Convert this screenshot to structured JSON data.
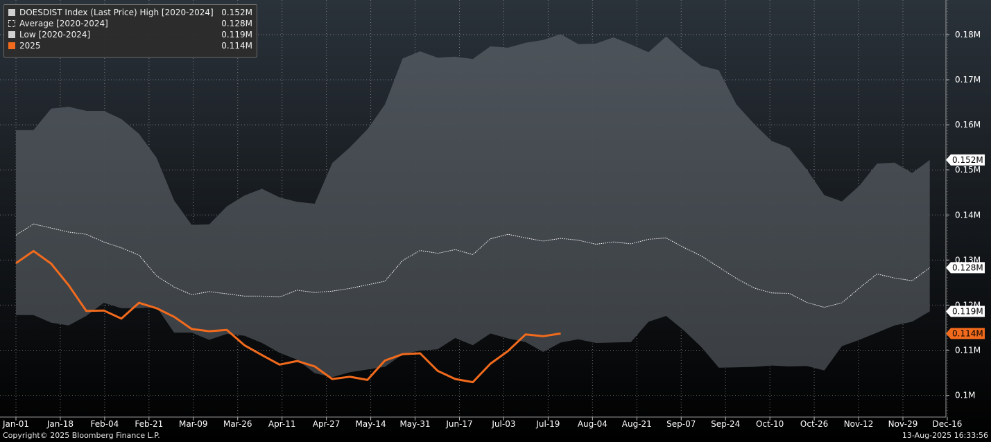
{
  "legend": {
    "items": [
      {
        "label": "DOESDIST Index (Last Price) High [2020-2024]",
        "value": "0.152M",
        "swatch": "solid",
        "color": "#d0d0d0"
      },
      {
        "label": "Average  [2020-2024]",
        "value": "0.128M",
        "swatch": "dotted",
        "color": "#ffffff"
      },
      {
        "label": "Low  [2020-2024]",
        "value": "0.119M",
        "swatch": "solid",
        "color": "#d0d0d0"
      },
      {
        "label": "2025",
        "value": "0.114M",
        "swatch": "solid",
        "color": "#f26b1d"
      }
    ]
  },
  "footer": {
    "copyright": "Copyright© 2025 Bloomberg Finance L.P.",
    "timestamp": "13-Aug-2025 16:33:56"
  },
  "colors": {
    "band_fill": "#4b4f54",
    "average_line": "#ffffff",
    "series_2025": "#f26b1d",
    "background_top": "#2a323a",
    "background_bottom": "#000000",
    "grid": "#c8c8c8"
  },
  "chart_data": {
    "type": "area",
    "x_ticks": [
      "Jan-01",
      "Jan-18",
      "Feb-04",
      "Feb-21",
      "Mar-09",
      "Mar-26",
      "Apr-11",
      "Apr-27",
      "May-14",
      "May-31",
      "Jun-17",
      "Jul-03",
      "Jul-19",
      "Aug-04",
      "Aug-21",
      "Sep-07",
      "Sep-24",
      "Oct-10",
      "Oct-26",
      "Nov-12",
      "Nov-29",
      "Dec-16"
    ],
    "y_ticks": [
      "0.1M",
      "0.11M",
      "0.12M",
      "0.13M",
      "0.14M",
      "0.15M",
      "0.16M",
      "0.17M",
      "0.18M"
    ],
    "y_tick_values": [
      0.1,
      0.11,
      0.12,
      0.13,
      0.14,
      0.15,
      0.16,
      0.17,
      0.18
    ],
    "ylim": [
      0.0949,
      0.1883
    ],
    "x_range_weeks": [
      0,
      52
    ],
    "grid": true,
    "legend_position": "top-left",
    "last_value_labels": [
      {
        "text": "0.152M",
        "value": 0.1522,
        "style": "white"
      },
      {
        "text": "0.128M",
        "value": 0.1283,
        "style": "white"
      },
      {
        "text": "0.119M",
        "value": 0.1186,
        "style": "white"
      },
      {
        "text": "0.114M",
        "value": 0.1137,
        "style": "orange"
      }
    ],
    "series": [
      {
        "name": "DOESDIST Index (Last Price) High [2020-2024]",
        "role": "band_upper",
        "values": [
          0.1588,
          0.1588,
          0.1636,
          0.164,
          0.1631,
          0.1631,
          0.1613,
          0.158,
          0.1527,
          0.1432,
          0.1378,
          0.1379,
          0.1419,
          0.1443,
          0.1458,
          0.1439,
          0.1429,
          0.1425,
          0.1515,
          0.155,
          0.159,
          0.1645,
          0.1747,
          0.1763,
          0.1749,
          0.1751,
          0.1746,
          0.1774,
          0.1771,
          0.1782,
          0.1788,
          0.1801,
          0.1779,
          0.178,
          0.1794,
          0.1778,
          0.1761,
          0.1796,
          0.1761,
          0.1731,
          0.1721,
          0.1645,
          0.1602,
          0.1564,
          0.1549,
          0.1501,
          0.1444,
          0.143,
          0.1465,
          0.1514,
          0.1516,
          0.1493,
          0.1522
        ]
      },
      {
        "name": "Average  [2020-2024]",
        "role": "line_dotted",
        "values": [
          0.1355,
          0.138,
          0.1371,
          0.1362,
          0.1357,
          0.134,
          0.1327,
          0.1311,
          0.1265,
          0.124,
          0.1223,
          0.123,
          0.1225,
          0.122,
          0.122,
          0.1218,
          0.1233,
          0.1228,
          0.1231,
          0.1237,
          0.1245,
          0.1253,
          0.1299,
          0.1321,
          0.1315,
          0.1323,
          0.1312,
          0.1347,
          0.1357,
          0.1349,
          0.1342,
          0.1348,
          0.1344,
          0.1335,
          0.134,
          0.1336,
          0.1346,
          0.1349,
          0.1328,
          0.1309,
          0.1284,
          0.1259,
          0.1238,
          0.1227,
          0.1226,
          0.1206,
          0.1195,
          0.1205,
          0.1238,
          0.1269,
          0.126,
          0.1254,
          0.1283
        ]
      },
      {
        "name": "Low  [2020-2024]",
        "role": "band_lower",
        "values": [
          0.1178,
          0.1178,
          0.1161,
          0.1155,
          0.1176,
          0.1205,
          0.1193,
          0.1193,
          0.1196,
          0.1139,
          0.1139,
          0.1123,
          0.1136,
          0.1132,
          0.1116,
          0.1094,
          0.1079,
          0.1049,
          0.104,
          0.1051,
          0.1057,
          0.1063,
          0.1091,
          0.1099,
          0.1102,
          0.1127,
          0.1111,
          0.1137,
          0.1126,
          0.1118,
          0.1096,
          0.1117,
          0.1124,
          0.1116,
          0.1117,
          0.1118,
          0.1163,
          0.1176,
          0.1144,
          0.1107,
          0.1061,
          0.1062,
          0.1063,
          0.1066,
          0.1064,
          0.1065,
          0.1055,
          0.1109,
          0.1123,
          0.1139,
          0.1155,
          0.1163,
          0.1186
        ]
      },
      {
        "name": "2025",
        "role": "line",
        "values": [
          0.1293,
          0.132,
          0.1292,
          0.1244,
          0.1187,
          0.1188,
          0.117,
          0.1205,
          0.1193,
          0.1174,
          0.1147,
          0.1142,
          0.1145,
          0.1111,
          0.1089,
          0.1068,
          0.1076,
          0.1064,
          0.1036,
          0.1041,
          0.1034,
          0.1077,
          0.1091,
          0.1093,
          0.1054,
          0.1036,
          0.1029,
          0.107,
          0.1098,
          0.1135,
          0.1131,
          0.1137
        ]
      }
    ]
  }
}
